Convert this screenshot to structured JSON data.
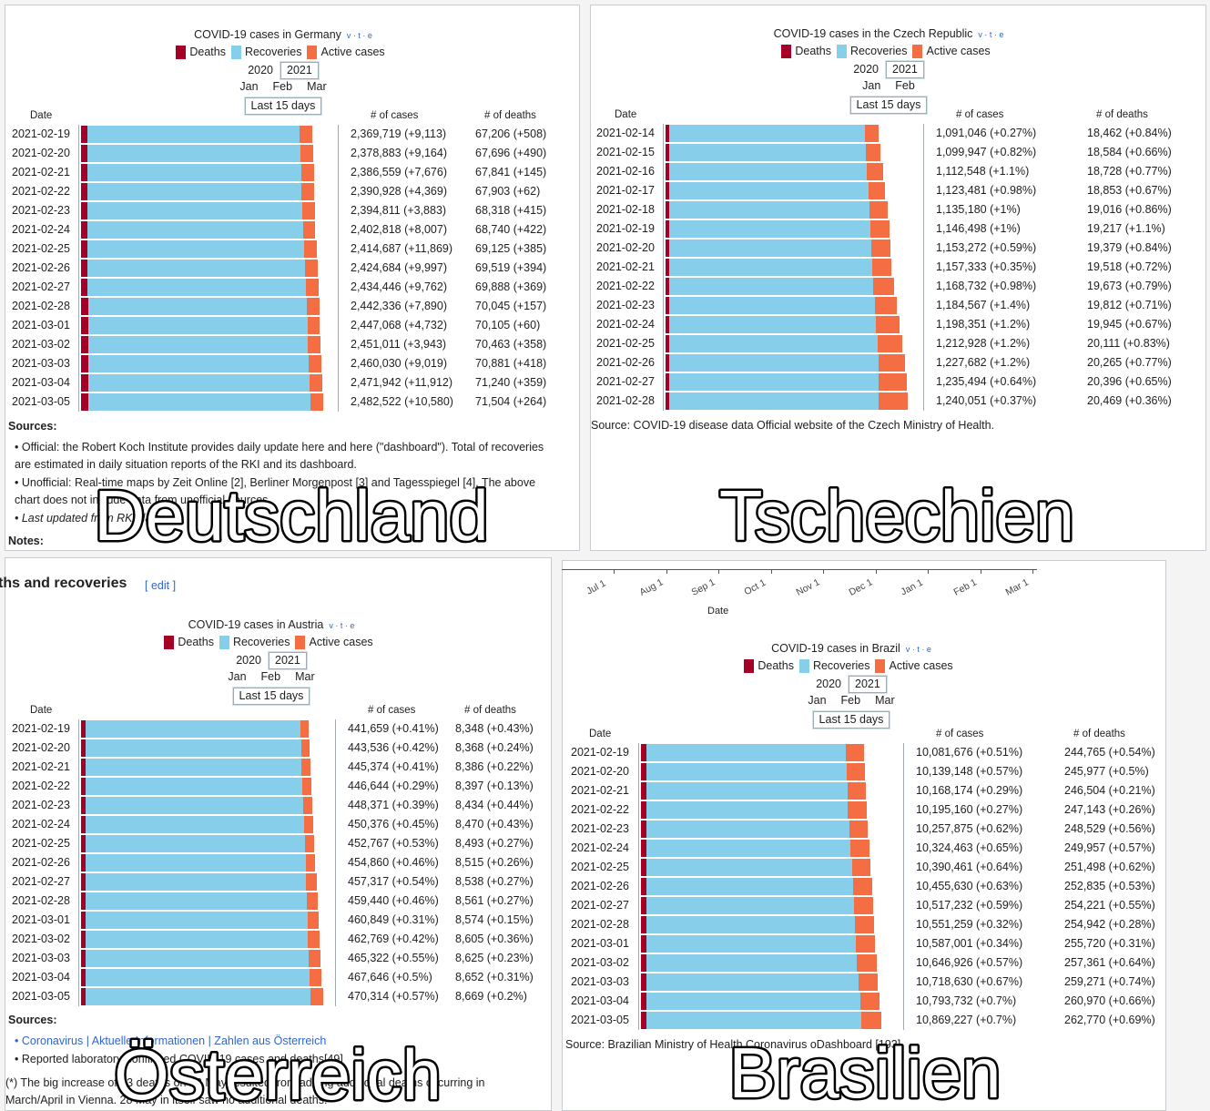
{
  "panels": [
    {
      "title": "COVID-19 cases in Germany",
      "vte": "v · t · e",
      "legend": [
        {
          "name": "Deaths",
          "color": "#a50026"
        },
        {
          "name": "Recoveries",
          "color": "#87ceeb"
        },
        {
          "name": "Active cases",
          "color": "#f46d43"
        }
      ],
      "years": [
        "2020",
        "2021"
      ],
      "months": [
        "Jan",
        "Feb",
        "Mar"
      ],
      "last15": "Last 15 days",
      "header": {
        "date": "Date",
        "cases": "# of cases",
        "deaths": "# of deaths"
      },
      "rows": [
        {
          "date": "2021-02-19",
          "cases": "2,369,719 (+9,113)",
          "deaths": "67,206 (+508)",
          "total": 2369719,
          "dead": 67206,
          "active": 130000
        },
        {
          "date": "2021-02-20",
          "cases": "2,378,883 (+9,164)",
          "deaths": "67,696 (+490)",
          "total": 2378883,
          "dead": 67696,
          "active": 130000
        },
        {
          "date": "2021-02-21",
          "cases": "2,386,559 (+7,676)",
          "deaths": "67,841 (+145)",
          "total": 2386559,
          "dead": 67841,
          "active": 129000
        },
        {
          "date": "2021-02-22",
          "cases": "2,390,928 (+4,369)",
          "deaths": "67,903 (+62)",
          "total": 2390928,
          "dead": 67903,
          "active": 128000
        },
        {
          "date": "2021-02-23",
          "cases": "2,394,811 (+3,883)",
          "deaths": "68,318 (+415)",
          "total": 2394811,
          "dead": 68318,
          "active": 127000
        },
        {
          "date": "2021-02-24",
          "cases": "2,402,818 (+8,007)",
          "deaths": "68,740 (+422)",
          "total": 2402818,
          "dead": 68740,
          "active": 127000
        },
        {
          "date": "2021-02-25",
          "cases": "2,414,687 (+11,869)",
          "deaths": "69,125 (+385)",
          "total": 2414687,
          "dead": 69125,
          "active": 127000
        },
        {
          "date": "2021-02-26",
          "cases": "2,424,684 (+9,997)",
          "deaths": "69,519 (+394)",
          "total": 2424684,
          "dead": 69519,
          "active": 127000
        },
        {
          "date": "2021-02-27",
          "cases": "2,434,446 (+9,762)",
          "deaths": "69,888 (+369)",
          "total": 2434446,
          "dead": 69888,
          "active": 128000
        },
        {
          "date": "2021-02-28",
          "cases": "2,442,336 (+7,890)",
          "deaths": "70,045 (+157)",
          "total": 2442336,
          "dead": 70045,
          "active": 128000
        },
        {
          "date": "2021-03-01",
          "cases": "2,447,068 (+4,732)",
          "deaths": "70,105 (+60)",
          "total": 2447068,
          "dead": 70105,
          "active": 127000
        },
        {
          "date": "2021-03-02",
          "cases": "2,451,011 (+3,943)",
          "deaths": "70,463 (+358)",
          "total": 2451011,
          "dead": 70463,
          "active": 126000
        },
        {
          "date": "2021-03-03",
          "cases": "2,460,030 (+9,019)",
          "deaths": "70,881 (+418)",
          "total": 2460030,
          "dead": 70881,
          "active": 127000
        },
        {
          "date": "2021-03-04",
          "cases": "2,471,942 (+11,912)",
          "deaths": "71,240 (+359)",
          "total": 2471942,
          "dead": 71240,
          "active": 128000
        },
        {
          "date": "2021-03-05",
          "cases": "2,482,522 (+10,580)",
          "deaths": "71,504 (+264)",
          "total": 2482522,
          "dead": 71504,
          "active": 130000
        }
      ],
      "extras": [
        "Sources:",
        "• Official: the Robert Koch Institute provides daily update here and here (\"dashboard\"). Total of recoveries are estimated in daily situation reports of the RKI and its dashboard.",
        "• Unofficial: Real-time maps by Zeit Online [2], Berliner Morgenpost [3] and Tagesspiegel [4]. The above chart does not include data from unofficial sources.",
        "• Last updated from RKI data",
        "Notes:"
      ]
    },
    {
      "title": "COVID-19 cases in the Czech Republic",
      "vte": "v · t · e",
      "legend": [
        {
          "name": "Deaths",
          "color": "#a50026"
        },
        {
          "name": "Recoveries",
          "color": "#87ceeb"
        },
        {
          "name": "Active cases",
          "color": "#f46d43"
        }
      ],
      "years": [
        "2020",
        "2021"
      ],
      "months": [
        "Jan",
        "Feb"
      ],
      "last15": "Last 15 days",
      "header": {
        "date": "Date",
        "cases": "# of cases",
        "deaths": "# of deaths"
      },
      "rows": [
        {
          "date": "2021-02-14",
          "cases": "1,091,046 (+0.27%)",
          "deaths": "18,462 (+0.84%)",
          "total": 1091046,
          "dead": 18462,
          "active": 70000
        },
        {
          "date": "2021-02-15",
          "cases": "1,099,947 (+0.82%)",
          "deaths": "18,584 (+0.66%)",
          "total": 1099947,
          "dead": 18584,
          "active": 74000
        },
        {
          "date": "2021-02-16",
          "cases": "1,112,548 (+1.1%)",
          "deaths": "18,728 (+0.77%)",
          "total": 1112548,
          "dead": 18728,
          "active": 80000
        },
        {
          "date": "2021-02-17",
          "cases": "1,123,481 (+0.98%)",
          "deaths": "18,853 (+0.67%)",
          "total": 1123481,
          "dead": 18853,
          "active": 86000
        },
        {
          "date": "2021-02-18",
          "cases": "1,135,180 (+1%)",
          "deaths": "19,016 (+0.86%)",
          "total": 1135180,
          "dead": 19016,
          "active": 92000
        },
        {
          "date": "2021-02-19",
          "cases": "1,146,498 (+1%)",
          "deaths": "19,217 (+1.1%)",
          "total": 1146498,
          "dead": 19217,
          "active": 97000
        },
        {
          "date": "2021-02-20",
          "cases": "1,153,272 (+0.59%)",
          "deaths": "19,379 (+0.84%)",
          "total": 1153272,
          "dead": 19379,
          "active": 100000
        },
        {
          "date": "2021-02-21",
          "cases": "1,157,333 (+0.35%)",
          "deaths": "19,518 (+0.72%)",
          "total": 1157333,
          "dead": 19518,
          "active": 100000
        },
        {
          "date": "2021-02-22",
          "cases": "1,168,732 (+0.98%)",
          "deaths": "19,673 (+0.79%)",
          "total": 1168732,
          "dead": 19673,
          "active": 104000
        },
        {
          "date": "2021-02-23",
          "cases": "1,184,567 (+1.4%)",
          "deaths": "19,812 (+0.71%)",
          "total": 1184567,
          "dead": 19812,
          "active": 112000
        },
        {
          "date": "2021-02-24",
          "cases": "1,198,351 (+1.2%)",
          "deaths": "19,945 (+0.67%)",
          "total": 1198351,
          "dead": 19945,
          "active": 120000
        },
        {
          "date": "2021-02-25",
          "cases": "1,212,928 (+1.2%)",
          "deaths": "20,111 (+0.83%)",
          "total": 1212928,
          "dead": 20111,
          "active": 128000
        },
        {
          "date": "2021-02-26",
          "cases": "1,227,682 (+1.2%)",
          "deaths": "20,265 (+0.77%)",
          "total": 1227682,
          "dead": 20265,
          "active": 137000
        },
        {
          "date": "2021-02-27",
          "cases": "1,235,494 (+0.64%)",
          "deaths": "20,396 (+0.65%)",
          "total": 1235494,
          "dead": 20396,
          "active": 144000
        },
        {
          "date": "2021-02-28",
          "cases": "1,240,051 (+0.37%)",
          "deaths": "20,469 (+0.36%)",
          "total": 1240051,
          "dead": 20469,
          "active": 149000
        }
      ],
      "extras": [
        "Source: COVID-19 disease data Official website of the Czech Ministry of Health."
      ]
    },
    {
      "title": "COVID-19 cases in Austria",
      "vte": "v · t · e",
      "legend": [
        {
          "name": "Deaths",
          "color": "#a50026"
        },
        {
          "name": "Recoveries",
          "color": "#87ceeb"
        },
        {
          "name": "Active cases",
          "color": "#f46d43"
        }
      ],
      "years": [
        "2020",
        "2021"
      ],
      "months": [
        "Jan",
        "Feb",
        "Mar"
      ],
      "last15": "Last 15 days",
      "header": {
        "date": "Date",
        "cases": "# of cases",
        "deaths": "# of deaths"
      },
      "rows": [
        {
          "date": "2021-02-19",
          "cases": "441,659 (+0.41%)",
          "deaths": "8,348 (+0.43%)",
          "total": 441659,
          "dead": 8348,
          "active": 16000
        },
        {
          "date": "2021-02-20",
          "cases": "443,536 (+0.42%)",
          "deaths": "8,368 (+0.24%)",
          "total": 443536,
          "dead": 8368,
          "active": 16500
        },
        {
          "date": "2021-02-21",
          "cases": "445,374 (+0.41%)",
          "deaths": "8,386 (+0.22%)",
          "total": 445374,
          "dead": 8386,
          "active": 17000
        },
        {
          "date": "2021-02-22",
          "cases": "446,644 (+0.29%)",
          "deaths": "8,397 (+0.13%)",
          "total": 446644,
          "dead": 8397,
          "active": 17000
        },
        {
          "date": "2021-02-23",
          "cases": "448,371 (+0.39%)",
          "deaths": "8,434 (+0.44%)",
          "total": 448371,
          "dead": 8434,
          "active": 17500
        },
        {
          "date": "2021-02-24",
          "cases": "450,376 (+0.45%)",
          "deaths": "8,470 (+0.43%)",
          "total": 450376,
          "dead": 8470,
          "active": 18000
        },
        {
          "date": "2021-02-25",
          "cases": "452,767 (+0.53%)",
          "deaths": "8,493 (+0.27%)",
          "total": 452767,
          "dead": 8493,
          "active": 18500
        },
        {
          "date": "2021-02-26",
          "cases": "454,860 (+0.46%)",
          "deaths": "8,515 (+0.26%)",
          "total": 454860,
          "dead": 8515,
          "active": 19000
        },
        {
          "date": "2021-02-27",
          "cases": "457,317 (+0.54%)",
          "deaths": "8,538 (+0.27%)",
          "total": 457317,
          "dead": 8538,
          "active": 20000
        },
        {
          "date": "2021-02-28",
          "cases": "459,440 (+0.46%)",
          "deaths": "8,561 (+0.27%)",
          "total": 459440,
          "dead": 8561,
          "active": 20500
        },
        {
          "date": "2021-03-01",
          "cases": "460,849 (+0.31%)",
          "deaths": "8,574 (+0.15%)",
          "total": 460849,
          "dead": 8574,
          "active": 21000
        },
        {
          "date": "2021-03-02",
          "cases": "462,769 (+0.42%)",
          "deaths": "8,605 (+0.36%)",
          "total": 462769,
          "dead": 8605,
          "active": 22000
        },
        {
          "date": "2021-03-03",
          "cases": "465,322 (+0.55%)",
          "deaths": "8,625 (+0.23%)",
          "total": 465322,
          "dead": 8625,
          "active": 23000
        },
        {
          "date": "2021-03-04",
          "cases": "467,646 (+0.5%)",
          "deaths": "8,652 (+0.31%)",
          "total": 467646,
          "dead": 8652,
          "active": 24000
        },
        {
          "date": "2021-03-05",
          "cases": "470,314 (+0.57%)",
          "deaths": "8,669 (+0.2%)",
          "total": 470314,
          "dead": 8669,
          "active": 25000
        }
      ],
      "extras": [
        "ths and recoveries",
        "[ edit ]",
        "Sources:",
        "• Coronavirus | Aktuelle Informationen | Zahlen aus Österreich",
        "• Reported laboratory-confirmed COVID-19 cases and deaths[49]",
        "(*) The big increase of 23 deaths on 22 May resulted from adding additional deaths occurring in March/April in Vienna. 28 May in itself saw no additional deaths."
      ]
    },
    {
      "title": "COVID-19 cases in Brazil",
      "vte": "v · t · e",
      "legend": [
        {
          "name": "Deaths",
          "color": "#a50026"
        },
        {
          "name": "Recoveries",
          "color": "#87ceeb"
        },
        {
          "name": "Active cases",
          "color": "#f46d43"
        }
      ],
      "years": [
        "2020",
        "2021"
      ],
      "months": [
        "Jan",
        "Feb",
        "Mar"
      ],
      "last15": "Last 15 days",
      "header": {
        "date": "Date",
        "cases": "# of cases",
        "deaths": "# of deaths"
      },
      "rows": [
        {
          "date": "2021-02-19",
          "cases": "10,081,676 (+0.51%)",
          "deaths": "244,765 (+0.54%)",
          "total": 10081676,
          "dead": 244765,
          "active": 820000
        },
        {
          "date": "2021-02-20",
          "cases": "10,139,148 (+0.57%)",
          "deaths": "245,977 (+0.5%)",
          "total": 10139148,
          "dead": 245977,
          "active": 830000
        },
        {
          "date": "2021-02-21",
          "cases": "10,168,174 (+0.29%)",
          "deaths": "246,504 (+0.21%)",
          "total": 10168174,
          "dead": 246504,
          "active": 835000
        },
        {
          "date": "2021-02-22",
          "cases": "10,195,160 (+0.27%)",
          "deaths": "247,143 (+0.26%)",
          "total": 10195160,
          "dead": 247143,
          "active": 840000
        },
        {
          "date": "2021-02-23",
          "cases": "10,257,875 (+0.62%)",
          "deaths": "248,529 (+0.56%)",
          "total": 10257875,
          "dead": 248529,
          "active": 845000
        },
        {
          "date": "2021-02-24",
          "cases": "10,324,463 (+0.65%)",
          "deaths": "249,957 (+0.57%)",
          "total": 10324463,
          "dead": 249957,
          "active": 850000
        },
        {
          "date": "2021-02-25",
          "cases": "10,390,461 (+0.64%)",
          "deaths": "251,498 (+0.62%)",
          "total": 10390461,
          "dead": 251498,
          "active": 855000
        },
        {
          "date": "2021-02-26",
          "cases": "10,455,630 (+0.63%)",
          "deaths": "252,835 (+0.53%)",
          "total": 10455630,
          "dead": 252835,
          "active": 860000
        },
        {
          "date": "2021-02-27",
          "cases": "10,517,232 (+0.59%)",
          "deaths": "254,221 (+0.55%)",
          "total": 10517232,
          "dead": 254221,
          "active": 865000
        },
        {
          "date": "2021-02-28",
          "cases": "10,551,259 (+0.32%)",
          "deaths": "254,942 (+0.28%)",
          "total": 10551259,
          "dead": 254942,
          "active": 870000
        },
        {
          "date": "2021-03-01",
          "cases": "10,587,001 (+0.34%)",
          "deaths": "255,720 (+0.31%)",
          "total": 10587001,
          "dead": 255720,
          "active": 875000
        },
        {
          "date": "2021-03-02",
          "cases": "10,646,926 (+0.57%)",
          "deaths": "257,361 (+0.64%)",
          "total": 10646926,
          "dead": 257361,
          "active": 880000
        },
        {
          "date": "2021-03-03",
          "cases": "10,718,630 (+0.67%)",
          "deaths": "259,271 (+0.74%)",
          "total": 10718630,
          "dead": 259271,
          "active": 885000
        },
        {
          "date": "2021-03-04",
          "cases": "10,793,732 (+0.7%)",
          "deaths": "260,970 (+0.66%)",
          "total": 10793732,
          "dead": 260970,
          "active": 890000
        },
        {
          "date": "2021-03-05",
          "cases": "10,869,227 (+0.7%)",
          "deaths": "262,770 (+0.69%)",
          "total": 10869227,
          "dead": 262770,
          "active": 900000
        }
      ],
      "extras": [
        "Source: Brazilian Ministry of Health Coronavirus oDashboard [193]"
      ],
      "axis_fragment": {
        "ticks": [
          "Jul 1",
          "Aug 1",
          "Sep 1",
          "Oct 1",
          "Nov 1",
          "Dec 1",
          "Jan 1",
          "Feb 1",
          "Mar 1"
        ],
        "label": "Date"
      }
    }
  ],
  "overlays": [
    "Deutschland",
    "Tschechien",
    "Österreich",
    "Brasilien"
  ]
}
